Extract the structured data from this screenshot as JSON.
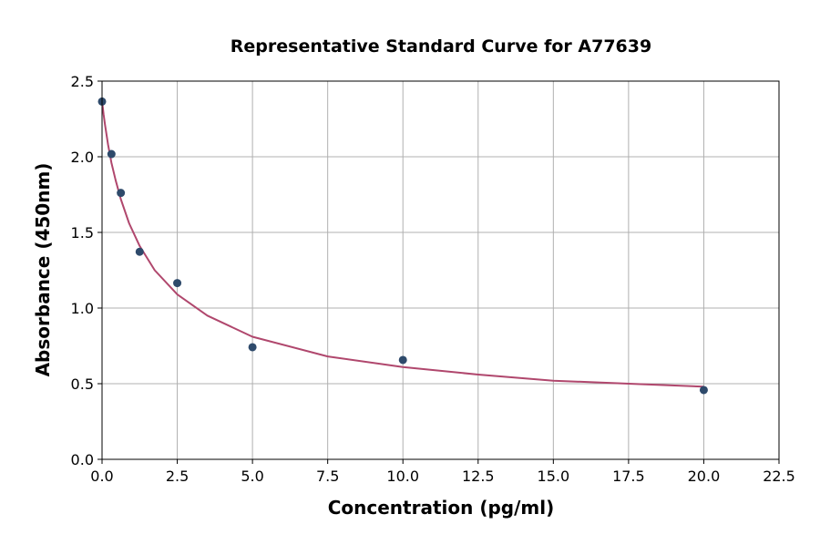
{
  "chart_data": {
    "type": "scatter",
    "title": "Representative Standard Curve for A77639",
    "xlabel": "Concentration (pg/ml)",
    "ylabel": "Absorbance (450nm)",
    "xlim": [
      0,
      22.5
    ],
    "ylim": [
      0,
      2.5
    ],
    "xticks": [
      "0.0",
      "2.5",
      "5.0",
      "7.5",
      "10.0",
      "12.5",
      "15.0",
      "17.5",
      "20.0",
      "22.5"
    ],
    "yticks": [
      "0.0",
      "0.5",
      "1.0",
      "1.5",
      "2.0",
      "2.5"
    ],
    "grid": true,
    "legend": "none",
    "points": {
      "x": [
        0,
        0.3125,
        0.625,
        1.25,
        2.5,
        5,
        10,
        20
      ],
      "y": [
        2.365,
        2.018,
        1.761,
        1.372,
        1.165,
        0.741,
        0.657,
        0.458
      ]
    },
    "fit_curve": {
      "x": [
        0,
        0.05,
        0.1,
        0.2,
        0.3125,
        0.45,
        0.625,
        0.9,
        1.25,
        1.75,
        2.5,
        3.5,
        5,
        7.5,
        10,
        12.5,
        15,
        17.5,
        20
      ],
      "y": [
        2.37,
        2.28,
        2.21,
        2.08,
        1.96,
        1.845,
        1.72,
        1.56,
        1.41,
        1.25,
        1.09,
        0.95,
        0.81,
        0.68,
        0.61,
        0.56,
        0.52,
        0.5,
        0.48
      ]
    },
    "colors": {
      "points": "#2e4a6b",
      "curve": "#b0476d",
      "grid": "#b0b0b0"
    }
  }
}
